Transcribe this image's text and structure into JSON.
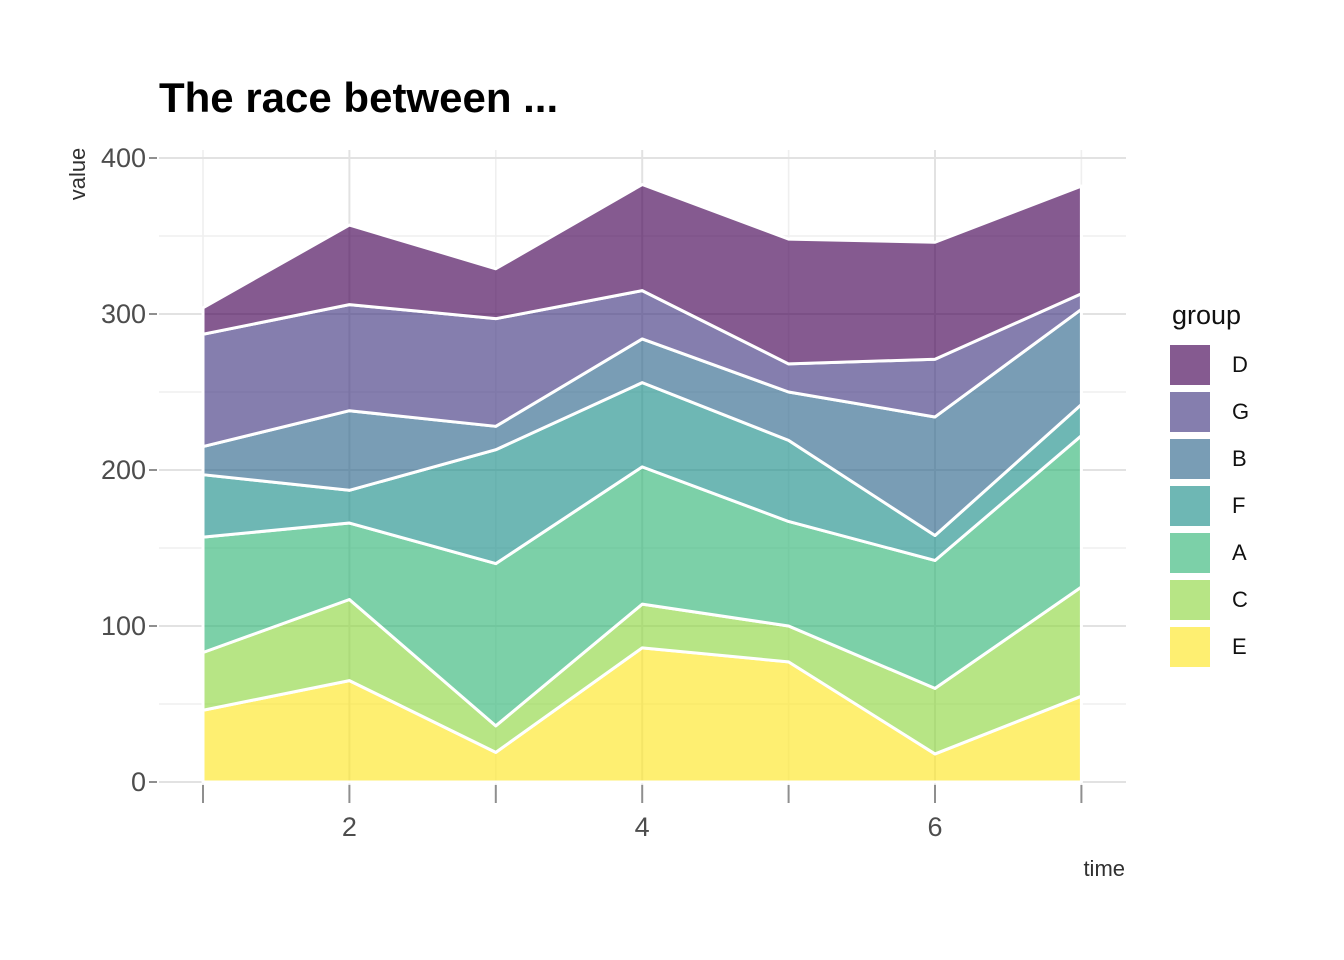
{
  "title": "The race between ...",
  "axes": {
    "x_label": "time",
    "y_label": "value",
    "x_major_ticks": [
      {
        "value": 2,
        "label": "2"
      },
      {
        "value": 4,
        "label": "4"
      },
      {
        "value": 6,
        "label": "6"
      }
    ],
    "x_minor_ticks": [
      1,
      3,
      5,
      7
    ],
    "y_major_ticks": [
      {
        "value": 0,
        "label": "0"
      },
      {
        "value": 100,
        "label": "100"
      },
      {
        "value": 200,
        "label": "200"
      },
      {
        "value": 300,
        "label": "300"
      },
      {
        "value": 400,
        "label": "400"
      }
    ],
    "y_minor_ticks": [
      50,
      150,
      250,
      350
    ]
  },
  "legend": {
    "title": "group",
    "entries": [
      {
        "label": "D",
        "color": "#440154"
      },
      {
        "label": "G",
        "color": "#443983"
      },
      {
        "label": "B",
        "color": "#31688e"
      },
      {
        "label": "F",
        "color": "#21918c"
      },
      {
        "label": "A",
        "color": "#35b779"
      },
      {
        "label": "C",
        "color": "#90d743"
      },
      {
        "label": "E",
        "color": "#fde725"
      }
    ]
  },
  "chart_data": {
    "type": "area",
    "stacked": true,
    "title": "The race between ...",
    "xlabel": "time",
    "ylabel": "value",
    "x": [
      1,
      2,
      3,
      4,
      5,
      6,
      7
    ],
    "xlim": [
      0.7,
      7.3
    ],
    "ylim": [
      0,
      405
    ],
    "fill_alpha": 0.65,
    "boundary_color": "#ffffff",
    "grid": "on",
    "legend_position": "right",
    "stack_order_bottom_to_top": [
      "E",
      "C",
      "A",
      "F",
      "B",
      "G",
      "D"
    ],
    "series": [
      {
        "name": "D",
        "color": "#440154",
        "values": [
          17,
          51,
          32,
          68,
          80,
          75,
          69
        ]
      },
      {
        "name": "G",
        "color": "#443983",
        "values": [
          72,
          68,
          69,
          31,
          18,
          37,
          10
        ]
      },
      {
        "name": "B",
        "color": "#31688e",
        "values": [
          18,
          51,
          15,
          28,
          31,
          76,
          61
        ]
      },
      {
        "name": "F",
        "color": "#21918c",
        "values": [
          40,
          21,
          73,
          54,
          52,
          16,
          20
        ]
      },
      {
        "name": "A",
        "color": "#35b779",
        "values": [
          74,
          49,
          104,
          88,
          67,
          82,
          97
        ]
      },
      {
        "name": "C",
        "color": "#90d743",
        "values": [
          37,
          52,
          17,
          28,
          23,
          42,
          70
        ]
      },
      {
        "name": "E",
        "color": "#fde725",
        "values": [
          46,
          65,
          19,
          86,
          77,
          18,
          55
        ]
      }
    ],
    "cumulative_tops": {
      "E": [
        46,
        65,
        19,
        86,
        77,
        18,
        55
      ],
      "C": [
        83,
        117,
        36,
        114,
        100,
        60,
        125
      ],
      "A": [
        157,
        166,
        140,
        202,
        167,
        142,
        222
      ],
      "F": [
        197,
        187,
        213,
        256,
        219,
        158,
        242
      ],
      "B": [
        215,
        238,
        228,
        284,
        250,
        234,
        303
      ],
      "G": [
        287,
        306,
        297,
        315,
        268,
        271,
        313
      ],
      "D": [
        304,
        357,
        329,
        383,
        348,
        346,
        382
      ]
    }
  },
  "grid_colors": {
    "major": "#e2e2e2",
    "minor": "#efefef",
    "tick": "#8f8f8f"
  }
}
